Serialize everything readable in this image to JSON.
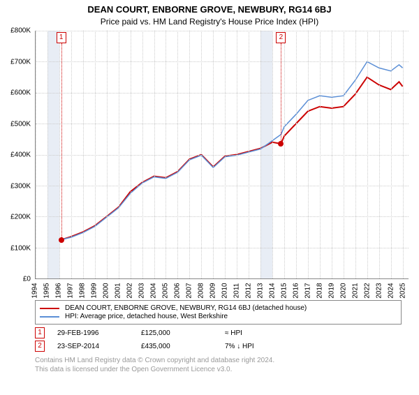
{
  "title": "DEAN COURT, ENBORNE GROVE, NEWBURY, RG14 6BJ",
  "subtitle": "Price paid vs. HM Land Registry's House Price Index (HPI)",
  "chart": {
    "type": "line",
    "background_color": "#ffffff",
    "grid_color": "#cccccc",
    "shade_color": "#e8edf5",
    "axis_color": "#888888",
    "label_fontsize": 10,
    "x_years": [
      1994,
      1995,
      1996,
      1997,
      1998,
      1999,
      2000,
      2001,
      2002,
      2003,
      2004,
      2005,
      2006,
      2007,
      2008,
      2009,
      2010,
      2011,
      2012,
      2013,
      2014,
      2015,
      2016,
      2017,
      2018,
      2019,
      2020,
      2021,
      2022,
      2023,
      2024,
      2025
    ],
    "x_min": 1994,
    "x_max": 2025.5,
    "ylim": [
      0,
      800000
    ],
    "ytick_step": 100000,
    "y_prefix": "£",
    "y_suffix": "K",
    "shaded_ranges": [
      [
        1995,
        1996
      ],
      [
        2013,
        2014
      ]
    ],
    "series": [
      {
        "name": "red",
        "color": "#cc0000",
        "width": 2,
        "points": [
          [
            1996.16,
            125000
          ],
          [
            1997,
            135000
          ],
          [
            1998,
            150000
          ],
          [
            1999,
            170000
          ],
          [
            2000,
            200000
          ],
          [
            2001,
            230000
          ],
          [
            2002,
            280000
          ],
          [
            2003,
            310000
          ],
          [
            2004,
            330000
          ],
          [
            2005,
            325000
          ],
          [
            2006,
            345000
          ],
          [
            2007,
            385000
          ],
          [
            2008,
            400000
          ],
          [
            2009,
            360000
          ],
          [
            2010,
            395000
          ],
          [
            2011,
            400000
          ],
          [
            2012,
            410000
          ],
          [
            2013,
            420000
          ],
          [
            2014,
            440000
          ],
          [
            2014.73,
            435000
          ],
          [
            2015,
            460000
          ],
          [
            2016,
            500000
          ],
          [
            2017,
            540000
          ],
          [
            2018,
            555000
          ],
          [
            2019,
            550000
          ],
          [
            2020,
            555000
          ],
          [
            2021,
            595000
          ],
          [
            2022,
            650000
          ],
          [
            2023,
            625000
          ],
          [
            2024,
            610000
          ],
          [
            2024.7,
            635000
          ],
          [
            2025,
            620000
          ]
        ]
      },
      {
        "name": "blue",
        "color": "#5b8fd6",
        "width": 1.5,
        "points": [
          [
            1996.16,
            125000
          ],
          [
            1997,
            133000
          ],
          [
            1998,
            148000
          ],
          [
            1999,
            168000
          ],
          [
            2000,
            198000
          ],
          [
            2001,
            228000
          ],
          [
            2002,
            275000
          ],
          [
            2003,
            308000
          ],
          [
            2004,
            328000
          ],
          [
            2005,
            323000
          ],
          [
            2006,
            343000
          ],
          [
            2007,
            383000
          ],
          [
            2008,
            398000
          ],
          [
            2009,
            358000
          ],
          [
            2010,
            393000
          ],
          [
            2011,
            398000
          ],
          [
            2012,
            408000
          ],
          [
            2013,
            418000
          ],
          [
            2014,
            445000
          ],
          [
            2014.73,
            465000
          ],
          [
            2015,
            490000
          ],
          [
            2016,
            530000
          ],
          [
            2017,
            575000
          ],
          [
            2018,
            590000
          ],
          [
            2019,
            585000
          ],
          [
            2020,
            590000
          ],
          [
            2021,
            640000
          ],
          [
            2022,
            700000
          ],
          [
            2023,
            680000
          ],
          [
            2024,
            670000
          ],
          [
            2024.7,
            690000
          ],
          [
            2025,
            680000
          ]
        ]
      }
    ],
    "sale_markers": [
      {
        "num": "1",
        "x": 1996.16,
        "y": 125000
      },
      {
        "num": "2",
        "x": 2014.73,
        "y": 435000
      }
    ]
  },
  "legend": {
    "border_color": "#888888",
    "items": [
      {
        "color": "#cc0000",
        "label": "DEAN COURT, ENBORNE GROVE, NEWBURY, RG14 6BJ (detached house)"
      },
      {
        "color": "#5b8fd6",
        "label": "HPI: Average price, detached house, West Berkshire"
      }
    ]
  },
  "notes": [
    {
      "num": "1",
      "date": "29-FEB-1996",
      "price": "£125,000",
      "delta": "≈ HPI"
    },
    {
      "num": "2",
      "date": "23-SEP-2014",
      "price": "£435,000",
      "delta": "7% ↓ HPI"
    }
  ],
  "footer": [
    "Contains HM Land Registry data © Crown copyright and database right 2024.",
    "This data is licensed under the Open Government Licence v3.0."
  ]
}
